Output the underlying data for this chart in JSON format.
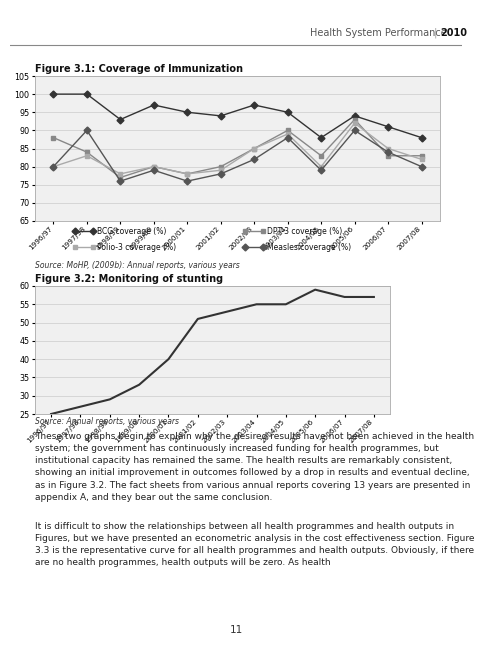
{
  "header_text": "Health System Performance",
  "header_year": "2010",
  "fig1_title": "Figure 3.1: Coverage of Immunization",
  "fig1_source": "Source: MoHP, (2009b): Annual reports, various years",
  "fig1_xlabels": [
    "1996/97",
    "1997/98",
    "1998/99",
    "1999/00",
    "2000/01",
    "2001/02",
    "2002/03",
    "2003/04",
    "2004/05",
    "2005/06",
    "2006/07",
    "2007/08"
  ],
  "fig1_ylim": [
    65,
    105
  ],
  "fig1_yticks": [
    65,
    70,
    75,
    80,
    85,
    90,
    95,
    100,
    105
  ],
  "fig1_bcg": [
    100,
    100,
    93,
    97,
    95,
    94,
    97,
    95,
    88,
    94,
    91,
    88
  ],
  "fig1_dpt3": [
    88,
    84,
    77,
    80,
    78,
    80,
    85,
    90,
    83,
    93,
    83,
    83
  ],
  "fig1_polio3": [
    80,
    83,
    78,
    80,
    78,
    79,
    85,
    89,
    80,
    92,
    85,
    82
  ],
  "fig1_measles": [
    80,
    90,
    76,
    79,
    76,
    78,
    82,
    88,
    79,
    90,
    84,
    80
  ],
  "fig1_legend": [
    "BCG coverage (%)",
    "DPT-3 coverage (%)",
    "Polio-3 coverage (%)",
    "Measles coverage (%)"
  ],
  "fig2_title": "Figure 3.2: Monitoring of stunting",
  "fig2_source": "Source: Annual reports, various years",
  "fig2_xlabels": [
    "1996/97",
    "1997/98",
    "1998/99",
    "1999/00",
    "2000/01",
    "2001/02",
    "2002/03",
    "2003/04",
    "2004/05",
    "2005/06",
    "2006/07",
    "2007/08"
  ],
  "fig2_ylim": [
    25,
    60
  ],
  "fig2_yticks": [
    25,
    30,
    35,
    40,
    45,
    50,
    55,
    60
  ],
  "fig2_stunting": [
    25,
    27,
    29,
    33,
    40,
    51,
    53,
    55,
    55,
    59,
    57,
    57
  ],
  "body_text1": "These two graphs begin to explain why the desired results have not been achieved in the health system; the government has continuously increased funding for health programmes, but institutional capacity has remained the same. The health results are remarkably consistent, showing an initial improvement in outcomes followed by a drop in results and eventual decline, as in Figure 3.2. The fact sheets from various annual reports covering 13 years are presented in appendix A, and they bear out the same conclusion.",
  "body_text2": "It is difficult to show the relationships between all health programmes and health outputs in Figures, but we have presented an econometric analysis in the cost effectiveness section. Figure 3.3 is the representative curve for all health programmes and health outputs. Obviously, if there are no health programmes, health outputs will be zero. As health",
  "page_number": "11",
  "line_color_bcg": "#333333",
  "line_color_dpt3": "#888888",
  "line_color_polio": "#aaaaaa",
  "line_color_meas": "#555555",
  "bg_color": "#ffffff",
  "plot_bg": "#f0f0f0",
  "header_line_color": "#888888",
  "grid_color": "#cccccc"
}
